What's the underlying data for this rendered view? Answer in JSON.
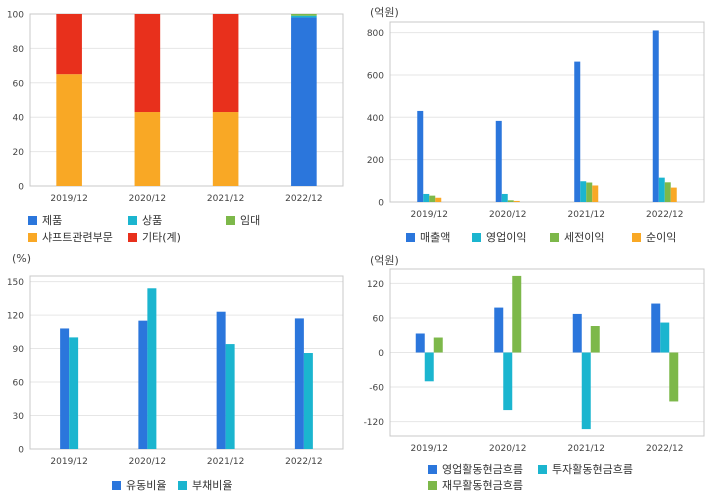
{
  "chart_data": [
    {
      "type": "bar",
      "stacked": true,
      "unit": "",
      "categories": [
        "2019/12",
        "2020/12",
        "2021/12",
        "2022/12"
      ],
      "ylim": [
        0,
        100
      ],
      "yticks": [
        0,
        20,
        40,
        60,
        80,
        100
      ],
      "series": [
        {
          "name": "제품",
          "color": "#2b76dc",
          "values": [
            0,
            0,
            0,
            98
          ]
        },
        {
          "name": "상품",
          "color": "#1bb5cf",
          "values": [
            0,
            0,
            0,
            1
          ]
        },
        {
          "name": "임대",
          "color": "#7db84a",
          "values": [
            0,
            0,
            0,
            1
          ]
        },
        {
          "name": "샤프트관련부문",
          "color": "#f9a825",
          "values": [
            65,
            43,
            43,
            0
          ]
        },
        {
          "name": "기타(계)",
          "color": "#e8301c",
          "values": [
            35,
            57,
            57,
            0
          ]
        }
      ],
      "grid": true
    },
    {
      "type": "bar",
      "unit": "(억원)",
      "categories": [
        "2019/12",
        "2020/12",
        "2021/12",
        "2022/12"
      ],
      "ylim": [
        0,
        850
      ],
      "yticks": [
        0,
        200,
        400,
        600,
        800
      ],
      "series": [
        {
          "name": "매출액",
          "color": "#2b76dc",
          "values": [
            430,
            383,
            663,
            810
          ]
        },
        {
          "name": "영업이익",
          "color": "#1bb5cf",
          "values": [
            38,
            38,
            98,
            115
          ]
        },
        {
          "name": "세전이익",
          "color": "#7db84a",
          "values": [
            30,
            8,
            92,
            93
          ]
        },
        {
          "name": "순이익",
          "color": "#f9a825",
          "values": [
            20,
            5,
            78,
            68
          ]
        }
      ],
      "grid": true
    },
    {
      "type": "bar",
      "unit": "(%)",
      "categories": [
        "2019/12",
        "2020/12",
        "2021/12",
        "2022/12"
      ],
      "ylim": [
        0,
        155
      ],
      "yticks": [
        0,
        30,
        60,
        90,
        120,
        150
      ],
      "series": [
        {
          "name": "유동비율",
          "color": "#2b76dc",
          "values": [
            108,
            115,
            123,
            117
          ]
        },
        {
          "name": "부채비율",
          "color": "#1bb5cf",
          "values": [
            100,
            144,
            94,
            86
          ]
        }
      ],
      "grid": true
    },
    {
      "type": "bar",
      "unit": "(억원)",
      "categories": [
        "2019/12",
        "2020/12",
        "2021/12",
        "2022/12"
      ],
      "ylim": [
        -145,
        145
      ],
      "yticks": [
        -120,
        -60,
        0,
        60,
        120
      ],
      "series": [
        {
          "name": "영업활동현금흐름",
          "color": "#2b76dc",
          "values": [
            33,
            78,
            67,
            85
          ]
        },
        {
          "name": "투자활동현금흐름",
          "color": "#1bb5cf",
          "values": [
            -50,
            -100,
            -133,
            52
          ]
        },
        {
          "name": "재무활동현금흐름",
          "color": "#7db84a",
          "values": [
            26,
            133,
            46,
            -85
          ]
        }
      ],
      "grid": true
    }
  ]
}
